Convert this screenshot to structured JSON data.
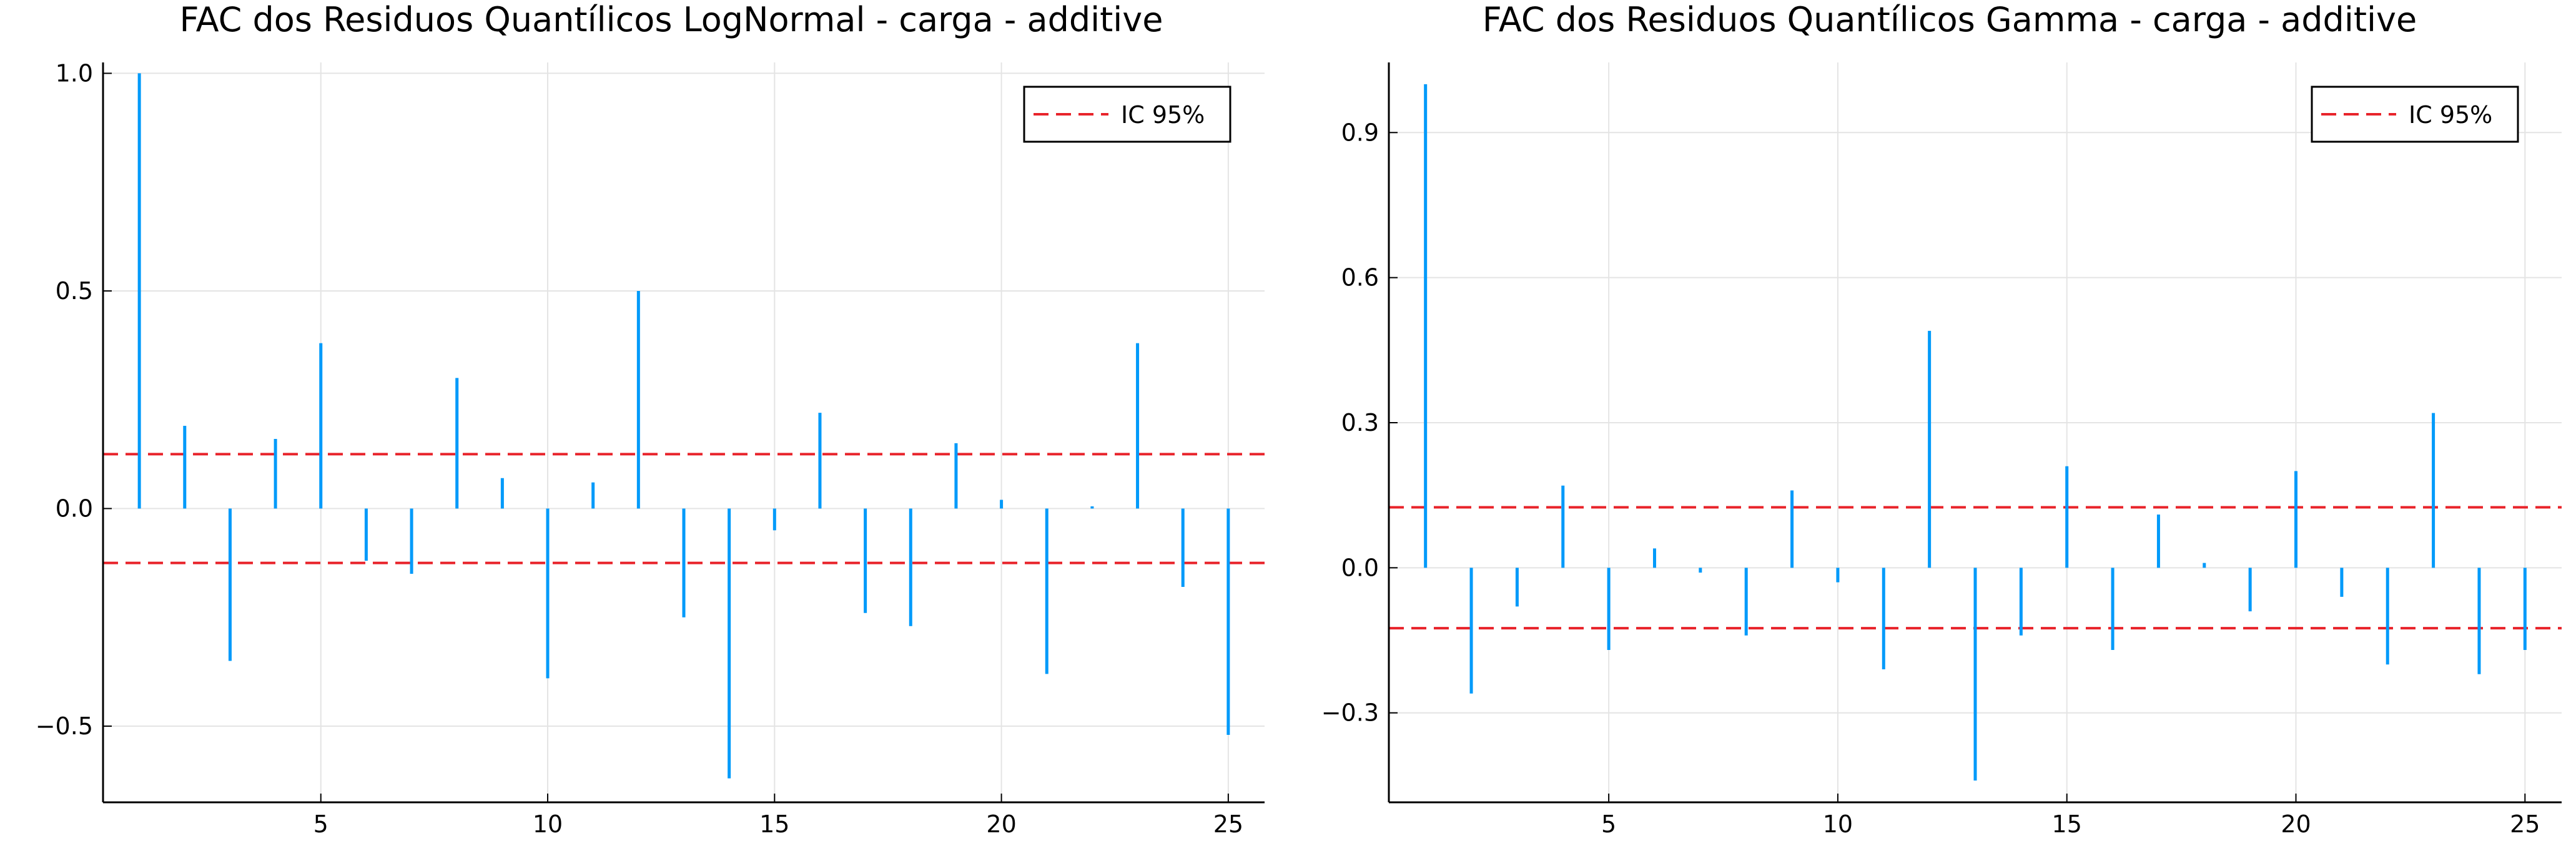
{
  "chart_data": [
    {
      "type": "bar",
      "title": "FAC dos Residuos Quantílicos LogNormal - carga - additive",
      "xlabel": "",
      "ylabel": "",
      "x": [
        1,
        2,
        3,
        4,
        5,
        6,
        7,
        8,
        9,
        10,
        11,
        12,
        13,
        14,
        15,
        16,
        17,
        18,
        19,
        20,
        21,
        22,
        23,
        24,
        25
      ],
      "values": [
        1.0,
        0.19,
        -0.35,
        0.16,
        0.38,
        -0.12,
        -0.15,
        0.3,
        0.07,
        -0.39,
        0.06,
        0.5,
        -0.25,
        -0.62,
        -0.05,
        0.22,
        -0.24,
        -0.27,
        0.15,
        0.02,
        -0.38,
        0.005,
        0.38,
        -0.18,
        -0.52
      ],
      "xlim": [
        0.2,
        25.8
      ],
      "ylim": [
        -0.675,
        1.025
      ],
      "xticks": [
        5,
        10,
        15,
        20,
        25
      ],
      "xtick_labels": [
        "5",
        "10",
        "15",
        "20",
        "25"
      ],
      "yticks": [
        -0.5,
        0.0,
        0.5,
        1.0
      ],
      "ytick_labels": [
        "−0.5",
        "0.0",
        "0.5",
        "1.0"
      ],
      "ci": 0.125,
      "legend": {
        "label": "IC 95%",
        "position": "top-right"
      },
      "grid": true,
      "series_color": "#009AFA",
      "ci_color": "#E8232A"
    },
    {
      "type": "bar",
      "title": "FAC dos Residuos Quantílicos Gamma - carga - additive",
      "xlabel": "",
      "ylabel": "",
      "x": [
        1,
        2,
        3,
        4,
        5,
        6,
        7,
        8,
        9,
        10,
        11,
        12,
        13,
        14,
        15,
        16,
        17,
        18,
        19,
        20,
        21,
        22,
        23,
        24,
        25
      ],
      "values": [
        1.0,
        -0.26,
        -0.08,
        0.17,
        -0.17,
        0.04,
        -0.01,
        -0.14,
        0.16,
        -0.03,
        -0.21,
        0.49,
        -0.44,
        -0.14,
        0.21,
        -0.17,
        0.11,
        0.01,
        -0.09,
        0.2,
        -0.06,
        -0.2,
        0.32,
        -0.22,
        -0.17
      ],
      "xlim": [
        0.2,
        25.8
      ],
      "ylim": [
        -0.485,
        1.045
      ],
      "xticks": [
        5,
        10,
        15,
        20,
        25
      ],
      "xtick_labels": [
        "5",
        "10",
        "15",
        "20",
        "25"
      ],
      "yticks": [
        -0.3,
        0.0,
        0.3,
        0.6,
        0.9
      ],
      "ytick_labels": [
        "−0.3",
        "0.0",
        "0.3",
        "0.6",
        "0.9"
      ],
      "ci": 0.125,
      "legend": {
        "label": "IC 95%",
        "position": "top-right"
      },
      "grid": true,
      "series_color": "#009AFA",
      "ci_color": "#E8232A"
    }
  ]
}
